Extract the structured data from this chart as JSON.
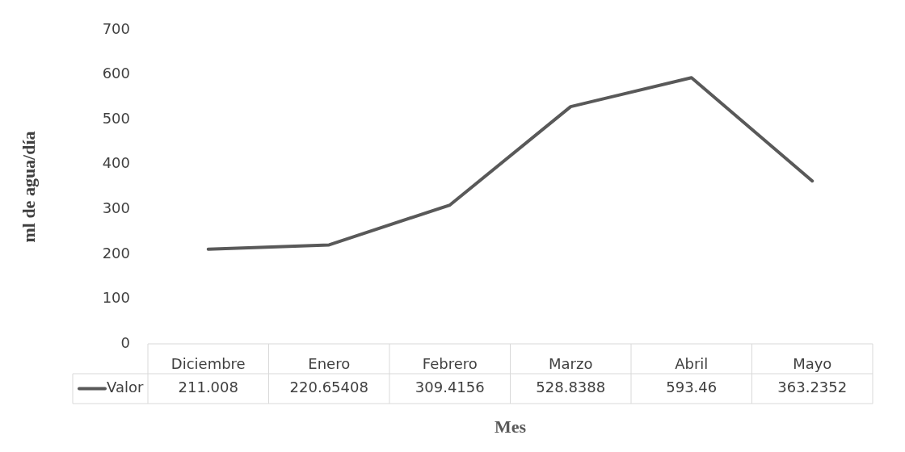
{
  "chart_data": {
    "type": "line",
    "xlabel": "Mes",
    "ylabel": "ml de agua/día",
    "categories": [
      "Diciembre",
      "Enero",
      "Febrero",
      "Marzo",
      "Abril",
      "Mayo"
    ],
    "series": [
      {
        "name": "Valor",
        "color": "#595959",
        "values": [
          211.008,
          220.65408,
          309.4156,
          528.8388,
          593.46,
          363.2352
        ]
      }
    ],
    "ylim": [
      0,
      700
    ],
    "yticks": [
      0,
      100,
      200,
      300,
      400,
      500,
      600,
      700
    ],
    "grid": false,
    "legend": "bottom",
    "data_labels": true,
    "marker": "none",
    "line_style": "solid"
  }
}
